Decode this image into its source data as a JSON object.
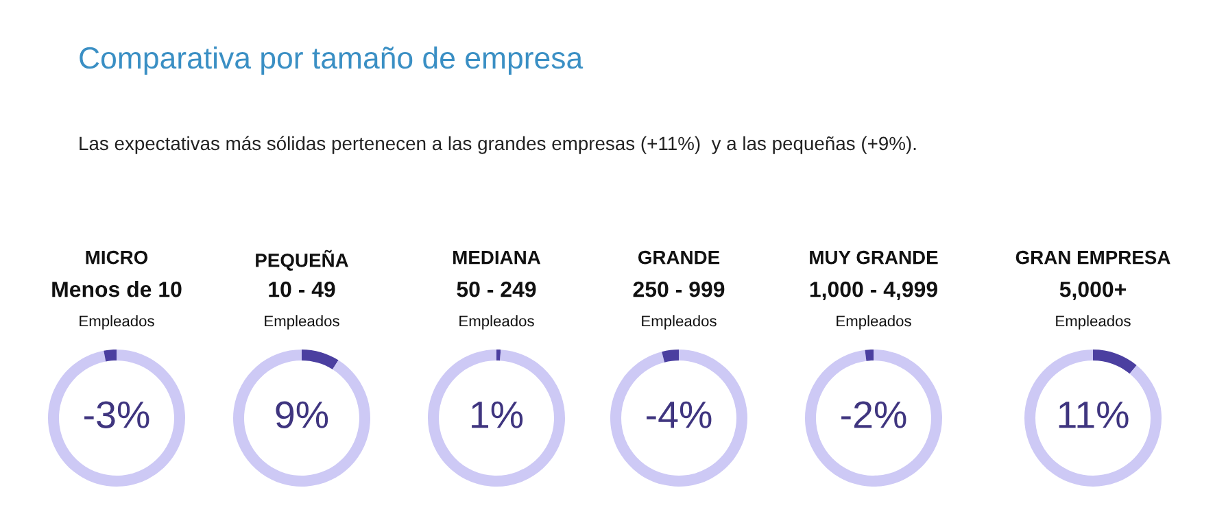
{
  "chart_data": [
    {
      "type": "other",
      "title": "Comparativa por tamaño de empresa",
      "subtitle": "Las expectativas más sólidas pertenecen a las grandes empresas (+11%)  y a las pequeñas (+9%)."
    },
    {
      "type": "donut",
      "title": "MICRO",
      "subtitle": "Menos de 10",
      "annotations": [
        "Empleados",
        "-3%"
      ],
      "categories": [
        null,
        null
      ],
      "values": [
        97,
        3
      ],
      "colors": [
        "#cdc9f5",
        "#4b3fa0"
      ]
    },
    {
      "type": "donut",
      "title": "PEQUEÑA",
      "subtitle": "10 - 49",
      "annotations": [
        "Empleados",
        "9%"
      ],
      "categories": [
        null,
        null
      ],
      "values": [
        9,
        91
      ],
      "colors": [
        "#4b3fa0",
        "#cdc9f5"
      ]
    },
    {
      "type": "donut",
      "title": "MEDIANA",
      "subtitle": "50 - 249",
      "annotations": [
        "Empleados",
        "1%"
      ],
      "categories": [
        null,
        null
      ],
      "values": [
        1,
        99
      ],
      "colors": [
        "#4b3fa0",
        "#cdc9f5"
      ]
    },
    {
      "type": "donut",
      "title": "GRANDE",
      "subtitle": "250 - 999",
      "annotations": [
        "Empleados",
        "-4%"
      ],
      "categories": [
        null,
        null
      ],
      "values": [
        96,
        4
      ],
      "colors": [
        "#cdc9f5",
        "#4b3fa0"
      ]
    },
    {
      "type": "donut",
      "title": "MUY GRANDE",
      "subtitle": "1,000 - 4,999",
      "annotations": [
        "Empleados",
        "-2%"
      ],
      "categories": [
        null,
        null
      ],
      "values": [
        98,
        2
      ],
      "colors": [
        "#cdc9f5",
        "#4b3fa0"
      ]
    },
    {
      "type": "donut",
      "title": "GRAN EMPRESA",
      "subtitle": "5,000+",
      "annotations": [
        "Empleados",
        "11%"
      ],
      "categories": [
        null,
        null
      ],
      "values": [
        11,
        89
      ],
      "colors": [
        "#4b3fa0",
        "#cdc9f5"
      ]
    }
  ]
}
